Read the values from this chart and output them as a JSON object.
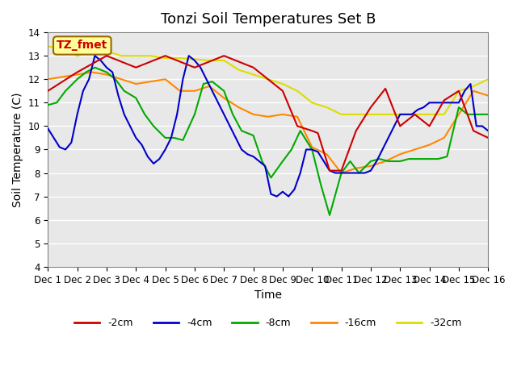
{
  "title": "Tonzi Soil Temperatures Set B",
  "xlabel": "Time",
  "ylabel": "Soil Temperature (C)",
  "ylim": [
    4.0,
    14.0
  ],
  "xlim": [
    0,
    15
  ],
  "yticks": [
    4.0,
    5.0,
    6.0,
    7.0,
    8.0,
    9.0,
    10.0,
    11.0,
    12.0,
    13.0,
    14.0
  ],
  "xtick_labels": [
    "Dec 1",
    "Dec 2",
    "Dec 3",
    "Dec 4",
    "Dec 5",
    "Dec 6",
    "Dec 7",
    "Dec 8",
    "Dec 9",
    "Dec 10",
    "Dec 11",
    "Dec 12",
    "Dec 13",
    "Dec 14",
    "Dec 15",
    "Dec 16"
  ],
  "annotation_text": "TZ_fmet",
  "annotation_color": "#cc0000",
  "annotation_bg": "#ffff99",
  "annotation_border": "#996600",
  "series": {
    "neg2cm": {
      "color": "#cc0000",
      "label": "-2cm",
      "x": [
        0,
        1,
        2,
        3,
        4,
        5,
        6,
        7,
        8,
        8.5,
        9,
        9.2,
        9.4,
        9.6,
        10,
        10.5,
        11,
        11.5,
        12,
        12.5,
        13,
        13.5,
        14,
        14.5,
        15
      ],
      "y": [
        11.5,
        12.3,
        13.0,
        12.5,
        13.0,
        12.5,
        13.0,
        12.5,
        11.5,
        10.0,
        9.8,
        9.7,
        8.9,
        8.1,
        8.1,
        9.8,
        10.8,
        11.6,
        10.0,
        10.5,
        10.0,
        11.1,
        11.5,
        9.8,
        9.5
      ]
    },
    "neg4cm": {
      "color": "#0000cc",
      "label": "-4cm",
      "x": [
        0,
        0.2,
        0.4,
        0.6,
        0.8,
        1.0,
        1.2,
        1.4,
        1.6,
        1.8,
        2.0,
        2.2,
        2.4,
        2.6,
        2.8,
        3.0,
        3.2,
        3.4,
        3.6,
        3.8,
        4.0,
        4.2,
        4.4,
        4.6,
        4.8,
        5.0,
        5.2,
        5.4,
        5.6,
        5.8,
        6.0,
        6.2,
        6.4,
        6.6,
        6.8,
        7.0,
        7.2,
        7.4,
        7.6,
        7.8,
        8.0,
        8.2,
        8.4,
        8.6,
        8.8,
        9.0,
        9.2,
        9.4,
        9.6,
        9.8,
        10.0,
        10.2,
        10.4,
        10.6,
        10.8,
        11.0,
        11.2,
        11.4,
        11.6,
        11.8,
        12.0,
        12.2,
        12.4,
        12.6,
        12.8,
        13.0,
        13.2,
        13.4,
        13.6,
        13.8,
        14.0,
        14.2,
        14.4,
        14.6,
        14.8,
        15.0
      ],
      "y": [
        9.9,
        9.5,
        9.1,
        9.0,
        9.3,
        10.5,
        11.5,
        12.0,
        13.0,
        12.8,
        12.5,
        12.3,
        11.3,
        10.5,
        10.0,
        9.5,
        9.2,
        8.7,
        8.4,
        8.6,
        9.0,
        9.5,
        10.5,
        12.0,
        13.0,
        12.8,
        12.5,
        12.0,
        11.5,
        11.0,
        10.5,
        10.0,
        9.5,
        9.0,
        8.8,
        8.7,
        8.5,
        8.3,
        7.1,
        7.0,
        7.2,
        7.0,
        7.3,
        8.0,
        9.0,
        9.0,
        8.9,
        8.5,
        8.1,
        8.0,
        8.0,
        8.0,
        8.0,
        8.0,
        8.0,
        8.1,
        8.5,
        9.0,
        9.5,
        10.0,
        10.5,
        10.5,
        10.5,
        10.7,
        10.8,
        11.0,
        11.0,
        11.0,
        11.0,
        11.0,
        11.0,
        11.5,
        11.8,
        10.0,
        10.0,
        9.8
      ]
    },
    "neg8cm": {
      "color": "#00aa00",
      "label": "-8cm",
      "x": [
        0,
        0.3,
        0.6,
        1.0,
        1.3,
        1.6,
        2.0,
        2.3,
        2.6,
        3.0,
        3.3,
        3.6,
        4.0,
        4.3,
        4.6,
        5.0,
        5.3,
        5.6,
        6.0,
        6.3,
        6.6,
        7.0,
        7.3,
        7.6,
        8.0,
        8.3,
        8.6,
        9.0,
        9.3,
        9.6,
        10.0,
        10.3,
        10.6,
        11.0,
        11.3,
        11.6,
        12.0,
        12.3,
        12.6,
        13.0,
        13.3,
        13.6,
        14.0,
        14.3,
        14.6,
        15.0
      ],
      "y": [
        10.9,
        11.0,
        11.5,
        12.0,
        12.3,
        12.5,
        12.3,
        12.0,
        11.5,
        11.2,
        10.5,
        10.0,
        9.5,
        9.5,
        9.4,
        10.5,
        11.8,
        11.9,
        11.5,
        10.5,
        9.8,
        9.6,
        8.5,
        7.8,
        8.5,
        9.0,
        9.8,
        9.0,
        7.5,
        6.2,
        8.0,
        8.5,
        8.0,
        8.5,
        8.6,
        8.5,
        8.5,
        8.6,
        8.6,
        8.6,
        8.6,
        8.7,
        10.8,
        10.5,
        10.5,
        10.5
      ]
    },
    "neg16cm": {
      "color": "#ff8800",
      "label": "-16cm",
      "x": [
        0,
        0.5,
        1.0,
        1.5,
        2.0,
        2.5,
        3.0,
        3.5,
        4.0,
        4.5,
        5.0,
        5.5,
        6.0,
        6.5,
        7.0,
        7.5,
        8.0,
        8.5,
        9.0,
        9.5,
        10.0,
        10.5,
        11.0,
        11.5,
        12.0,
        12.5,
        13.0,
        13.5,
        14.0,
        14.5,
        15.0
      ],
      "y": [
        12.0,
        12.1,
        12.2,
        12.3,
        12.2,
        12.0,
        11.8,
        11.9,
        12.0,
        11.5,
        11.5,
        11.7,
        11.2,
        10.8,
        10.5,
        10.4,
        10.5,
        10.4,
        9.1,
        8.8,
        8.0,
        8.2,
        8.3,
        8.5,
        8.8,
        9.0,
        9.2,
        9.5,
        10.5,
        11.5,
        11.3
      ]
    },
    "neg32cm": {
      "color": "#dddd00",
      "label": "-32cm",
      "x": [
        0,
        0.5,
        1.0,
        1.5,
        2.0,
        2.5,
        3.0,
        3.5,
        4.0,
        4.5,
        5.0,
        5.5,
        6.0,
        6.5,
        7.0,
        7.5,
        8.0,
        8.5,
        9.0,
        9.5,
        10.0,
        10.5,
        11.0,
        11.5,
        12.0,
        12.5,
        13.0,
        13.5,
        14.0,
        14.5,
        15.0
      ],
      "y": [
        13.4,
        13.3,
        13.0,
        13.2,
        13.2,
        13.0,
        13.0,
        13.0,
        12.9,
        12.9,
        12.85,
        12.8,
        12.8,
        12.4,
        12.2,
        12.0,
        11.8,
        11.5,
        11.0,
        10.8,
        10.5,
        10.5,
        10.5,
        10.5,
        10.5,
        10.5,
        10.5,
        10.5,
        11.5,
        11.7,
        12.0
      ]
    }
  },
  "bg_color": "#e8e8e8",
  "plot_bg_color": "#e8e8e8",
  "grid_color": "white",
  "title_fontsize": 13,
  "axis_fontsize": 10,
  "tick_fontsize": 8.5
}
